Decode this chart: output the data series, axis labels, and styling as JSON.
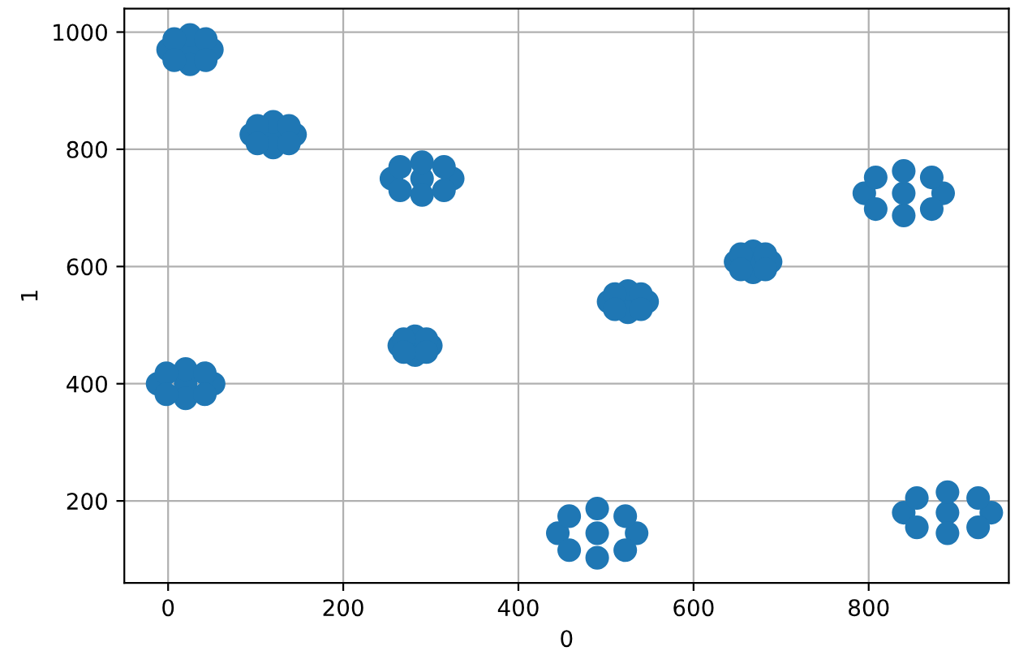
{
  "chart_data": {
    "type": "scatter",
    "xlabel": "0",
    "ylabel": "1",
    "x": [
      25,
      50,
      0,
      25,
      25,
      43,
      7,
      43,
      7,
      120,
      145,
      95,
      120,
      120,
      138,
      102,
      138,
      102,
      290,
      325,
      255,
      290,
      290,
      315,
      265,
      315,
      265,
      547,
      503,
      525,
      525,
      540,
      510,
      540,
      510,
      688,
      648,
      668,
      668,
      682,
      654,
      682,
      654,
      840,
      885,
      795,
      840,
      840,
      872,
      808,
      872,
      808,
      20,
      52,
      -12,
      20,
      20,
      42,
      -2,
      42,
      -2,
      300,
      264,
      282,
      282,
      295,
      269,
      295,
      269,
      490,
      535,
      445,
      490,
      490,
      522,
      458,
      522,
      458,
      890,
      940,
      840,
      890,
      890,
      925,
      855,
      925,
      855
    ],
    "series": [
      {
        "color": "#1f77b4",
        "values": [
          970,
          970,
          970,
          995,
          945,
          988,
          988,
          952,
          952,
          825,
          825,
          825,
          847,
          803,
          840,
          840,
          810,
          810,
          750,
          750,
          750,
          778,
          722,
          770,
          770,
          730,
          730,
          540,
          540,
          558,
          522,
          553,
          553,
          527,
          527,
          608,
          608,
          626,
          590,
          621,
          621,
          595,
          595,
          725,
          725,
          725,
          763,
          687,
          752,
          752,
          698,
          698,
          400,
          400,
          400,
          425,
          375,
          418,
          418,
          382,
          382,
          465,
          465,
          481,
          449,
          476,
          476,
          454,
          454,
          145,
          145,
          145,
          187,
          103,
          174,
          174,
          116,
          116,
          180,
          180,
          180,
          215,
          145,
          205,
          205,
          155,
          155
        ]
      }
    ],
    "xlim": [
      -50,
      960
    ],
    "ylim": [
      60,
      1040
    ],
    "xticks": [
      0,
      200,
      400,
      600,
      800
    ],
    "yticks": [
      200,
      400,
      600,
      800,
      1000
    ],
    "grid": true,
    "marker": "circle"
  }
}
